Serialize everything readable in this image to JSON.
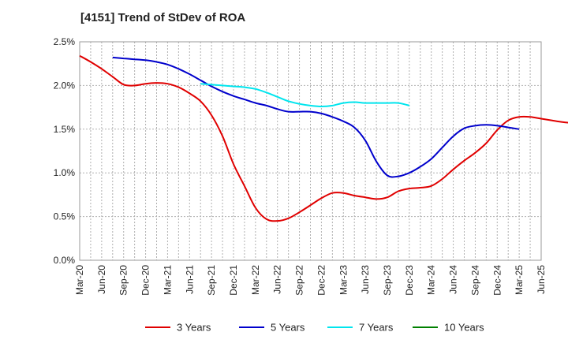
{
  "chart_data": {
    "type": "line",
    "title": "[4151]  Trend of StDev of ROA",
    "xlabel": "",
    "ylabel": "",
    "x_ticks": [
      "Mar-20",
      "Jun-20",
      "Sep-20",
      "Dec-20",
      "Mar-21",
      "Jun-21",
      "Sep-21",
      "Dec-21",
      "Mar-22",
      "Jun-22",
      "Sep-22",
      "Dec-22",
      "Mar-23",
      "Jun-23",
      "Sep-23",
      "Dec-23",
      "Mar-24",
      "Jun-24",
      "Sep-24",
      "Dec-24",
      "Mar-25",
      "Jun-25"
    ],
    "y_ticks": [
      "0.0%",
      "0.5%",
      "1.0%",
      "1.5%",
      "2.0%",
      "2.5%"
    ],
    "ylim": [
      0,
      2.5
    ],
    "grid": true,
    "legend_position": "bottom",
    "series": [
      {
        "name": "3 Years",
        "color": "#e00000",
        "start": 0,
        "values": [
          2.34,
          2.27,
          2.19,
          2.1,
          2.01,
          2.0,
          2.02,
          2.03,
          2.02,
          1.98,
          1.91,
          1.82,
          1.66,
          1.42,
          1.1,
          0.85,
          0.6,
          0.47,
          0.45,
          0.48,
          0.55,
          0.63,
          0.71,
          0.77,
          0.77,
          0.74,
          0.72,
          0.7,
          0.72,
          0.79,
          0.82,
          0.83,
          0.85,
          0.93,
          1.04,
          1.14,
          1.23,
          1.34,
          1.49,
          1.6,
          1.64,
          1.64,
          1.62,
          1.6,
          1.58,
          1.57
        ]
      },
      {
        "name": "5 Years",
        "color": "#0000cc",
        "start": 3,
        "values": [
          2.32,
          2.31,
          2.3,
          2.29,
          2.27,
          2.24,
          2.19,
          2.13,
          2.06,
          1.99,
          1.93,
          1.88,
          1.84,
          1.8,
          1.77,
          1.73,
          1.7,
          1.7,
          1.7,
          1.68,
          1.64,
          1.59,
          1.52,
          1.37,
          1.13,
          0.97,
          0.96,
          1.0,
          1.07,
          1.16,
          1.29,
          1.42,
          1.51,
          1.54,
          1.55,
          1.54,
          1.52,
          1.5
        ]
      },
      {
        "name": "7 Years",
        "color": "#00e5ee",
        "start": 11,
        "values": [
          2.02,
          2.01,
          2.0,
          1.99,
          1.98,
          1.96,
          1.92,
          1.87,
          1.82,
          1.79,
          1.77,
          1.76,
          1.77,
          1.8,
          1.81,
          1.8,
          1.8,
          1.8,
          1.8,
          1.77
        ]
      },
      {
        "name": "10 Years",
        "color": "#008000",
        "start": 0,
        "values": []
      }
    ]
  }
}
